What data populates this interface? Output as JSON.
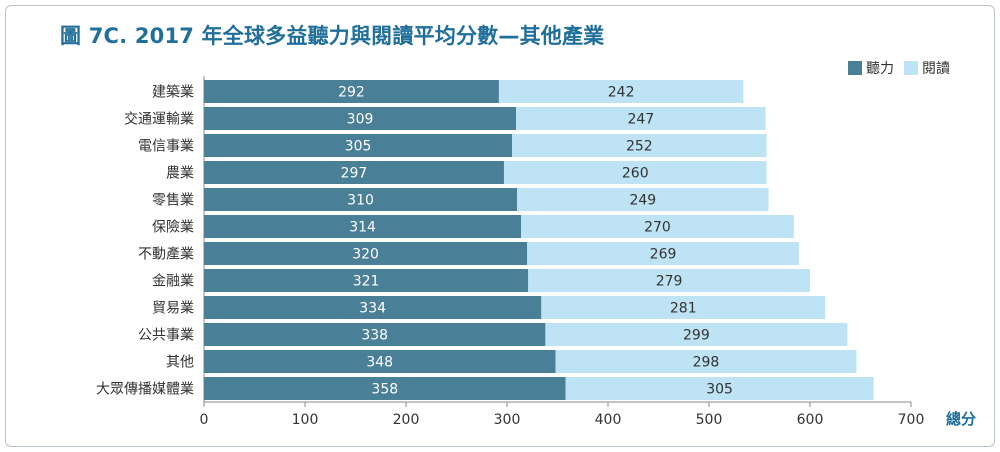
{
  "title": "圖 7C. 2017 年全球多益聽力與閱讀平均分數—其他產業",
  "legend": {
    "listening": "聽力",
    "reading": "閱讀"
  },
  "colors": {
    "listening": "#4a7f98",
    "reading": "#bde3f4",
    "accent": "#1f6f9a"
  },
  "chart_data": {
    "type": "bar",
    "orientation": "horizontal",
    "stacked": true,
    "categories": [
      "建築業",
      "交通運輸業",
      "電信事業",
      "農業",
      "零售業",
      "保險業",
      "不動產業",
      "金融業",
      "貿易業",
      "公共事業",
      "其他",
      "大眾傳播媒體業"
    ],
    "series": [
      {
        "name": "聽力",
        "values": [
          292,
          309,
          305,
          297,
          310,
          314,
          320,
          321,
          334,
          338,
          348,
          358
        ]
      },
      {
        "name": "閱讀",
        "values": [
          242,
          247,
          252,
          260,
          249,
          270,
          269,
          279,
          281,
          299,
          298,
          305
        ]
      }
    ],
    "xlim": [
      0,
      700
    ],
    "xticks": [
      "0",
      "100",
      "200",
      "300",
      "400",
      "500",
      "600",
      "700"
    ],
    "xlabel": "總分",
    "legend_position": "top-right"
  }
}
